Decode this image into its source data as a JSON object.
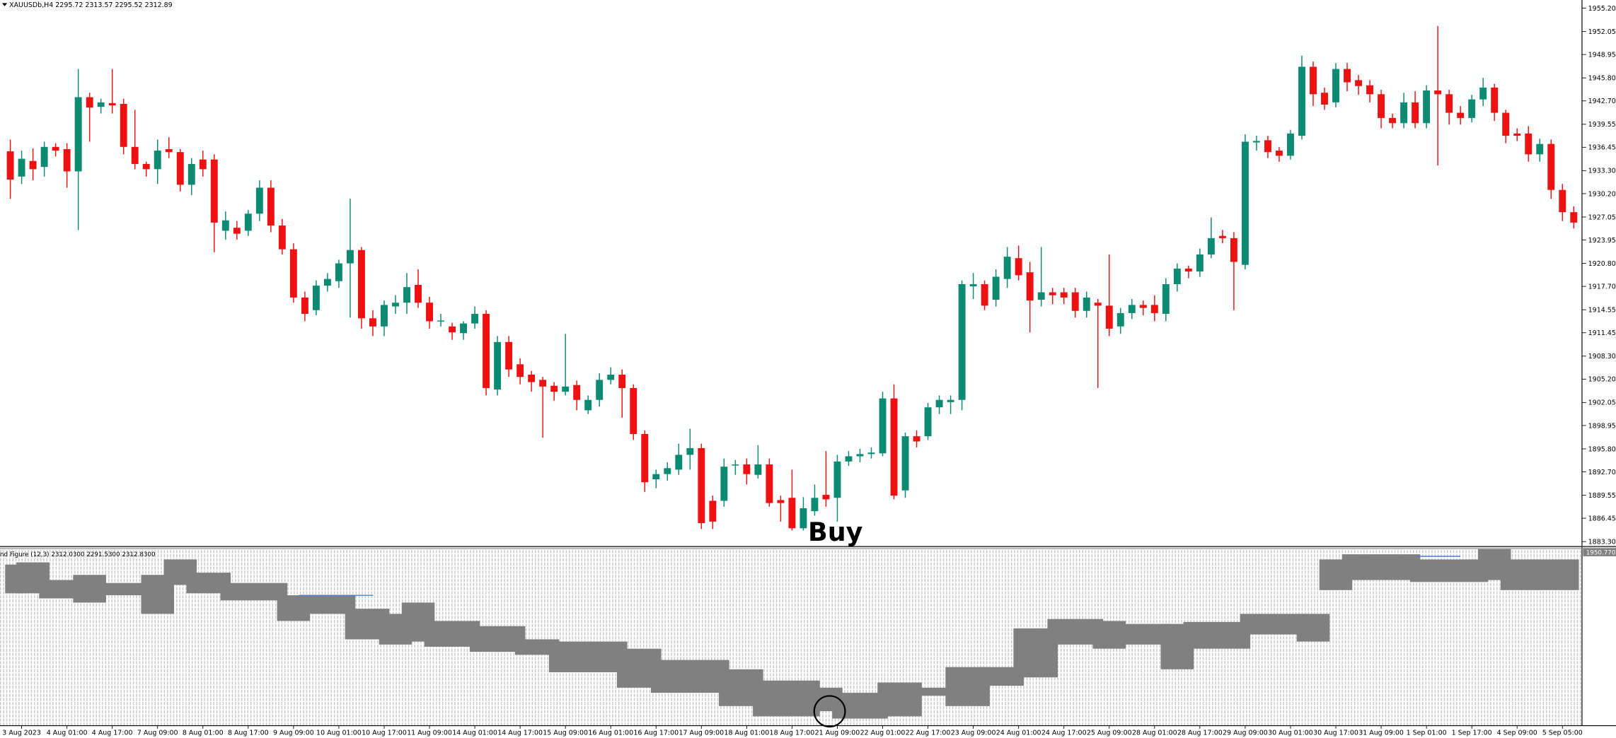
{
  "chart_data": [
    {
      "type": "candlestick",
      "title": "XAUUSDb,H4  2295.72 2313.57 2295.52 2312.89",
      "annotation": "Buy",
      "up_color": "#0d8a72",
      "down_color": "#ee1111",
      "categories": [
        null,
        "3 Aug 2023",
        null,
        null,
        null,
        "4 Aug 01:00",
        null,
        null,
        null,
        "4 Aug 17:00",
        null,
        null,
        null,
        "7 Aug 09:00",
        null,
        null,
        null,
        "8 Aug 01:00",
        null,
        null,
        null,
        "8 Aug 17:00",
        null,
        null,
        null,
        "9 Aug 09:00",
        null,
        null,
        null,
        "10 Aug 01:00",
        null,
        null,
        null,
        "10 Aug 17:00",
        null,
        null,
        null,
        "11 Aug 09:00",
        null,
        null,
        null,
        "14 Aug 01:00",
        null,
        null,
        null,
        "14 Aug 17:00",
        null,
        null,
        null,
        "15 Aug 09:00",
        null,
        null,
        null,
        "16 Aug 01:00",
        null,
        null,
        null,
        "16 Aug 17:00",
        null,
        null,
        null,
        "17 Aug 09:00",
        null,
        null,
        null,
        "18 Aug 01:00",
        null,
        null,
        null,
        "18 Aug 17:00",
        null,
        null,
        null,
        "21 Aug 09:00",
        null,
        null,
        null,
        "22 Aug 01:00",
        null,
        null,
        null,
        "22 Aug 17:00",
        null,
        null,
        null,
        "23 Aug 09:00",
        null,
        null,
        null,
        "24 Aug 01:00",
        null,
        null,
        null,
        "24 Aug 17:00",
        null,
        null,
        null,
        "25 Aug 09:00",
        null,
        null,
        null,
        "28 Aug 01:00",
        null,
        null,
        null,
        "28 Aug 17:00",
        null,
        null,
        null,
        "29 Aug 09:00",
        null,
        null,
        null,
        "30 Aug 01:00",
        null,
        null,
        null,
        "30 Aug 17:00",
        null,
        null,
        null,
        "31 Aug 09:00",
        null,
        null,
        null,
        "1 Sep 01:00",
        null,
        null,
        null,
        "1 Sep 17:00",
        null,
        null,
        null,
        "4 Sep 09:00",
        null,
        null,
        null,
        "5 Sep 05:00",
        null
      ],
      "open": [
        1935.9,
        1932.5,
        1934.6,
        1933.8,
        1936.5,
        1936.2,
        1933.2,
        1943.2,
        1941.9,
        1942.4,
        1942.3,
        1936.5,
        1934.2,
        1933.5,
        1936.2,
        1935.8,
        1931.4,
        1934.8,
        1934.8,
        1925.2,
        1925.6,
        1925.2,
        1927.5,
        1931.0,
        1925.9,
        1922.7,
        1916.2,
        1914.5,
        1917.8,
        1918.4,
        1920.8,
        1922.6,
        1913.4,
        1912.3,
        1915.0,
        1915.5,
        1917.9,
        1915.5,
        1913.0,
        1912.3,
        1911.4,
        1912.7,
        1914.0,
        1903.8,
        1910.2,
        1907.2,
        1905.8,
        1905.1,
        1904.3,
        1903.5,
        1904.4,
        1901.0,
        1902.4,
        1905.1,
        1905.8,
        1904.0,
        1897.8,
        1891.7,
        1892.4,
        1893.0,
        1895.0,
        1895.9,
        1888.8,
        1888.8,
        1893.6,
        1893.7,
        1892.3,
        1893.7,
        1888.9,
        1889.2,
        1885.1,
        1887.4,
        1889.6,
        1889.2,
        1894.1,
        1894.8,
        1895.1,
        1895.2,
        1902.6,
        1890.2,
        1897.5,
        1897.5,
        1901.4,
        1902.1,
        1902.4,
        1917.7,
        1918.0,
        1915.9,
        1918.7,
        1921.5,
        1919.6,
        1915.9,
        1916.9,
        1916.9,
        1916.9,
        1914.4,
        1915.5,
        1915.1,
        1912.3,
        1914.1,
        1915.2,
        1915.2,
        1914.0,
        1918.0,
        1920.1,
        1919.7,
        1922.0,
        1924.5,
        1924.2,
        1920.6,
        1937.1,
        1937.4,
        1936.0,
        1935.3,
        1938.0,
        1947.3,
        1943.8,
        1942.5,
        1947.0,
        1945.5,
        1944.8,
        1943.6,
        1940.4,
        1939.7,
        1942.5,
        1939.7,
        1944.1,
        1943.6,
        1941.1,
        1940.4,
        1942.9,
        1944.5,
        1941.1,
        1938.3,
        1938.3,
        1935.5,
        1936.9,
        1930.7,
        1927.7
      ],
      "high": [
        1937.5,
        1936.0,
        1936.3,
        1937.2,
        1937.0,
        1937.0,
        1947.0,
        1943.8,
        1943.0,
        1947.0,
        1943.0,
        1941.5,
        1934.5,
        1937.5,
        1937.8,
        1936.2,
        1935.0,
        1936.0,
        1935.5,
        1927.8,
        1926.5,
        1928.0,
        1932.0,
        1932.0,
        1926.8,
        1923.5,
        1917.0,
        1918.5,
        1919.5,
        1921.3,
        1929.5,
        1923.0,
        1914.5,
        1915.8,
        1916.5,
        1919.5,
        1920.0,
        1916.3,
        1914.0,
        1912.8,
        1913.0,
        1915.0,
        1914.5,
        1911.0,
        1911.0,
        1908.0,
        1906.3,
        1905.5,
        1904.8,
        1911.3,
        1905.0,
        1903.0,
        1906.0,
        1906.8,
        1906.5,
        1904.5,
        1898.3,
        1893.0,
        1894.0,
        1896.5,
        1898.5,
        1896.5,
        1889.5,
        1894.5,
        1894.3,
        1894.5,
        1896.3,
        1894.5,
        1889.5,
        1893.0,
        1889.3,
        1891.0,
        1895.5,
        1895.0,
        1895.5,
        1895.8,
        1896.0,
        1903.5,
        1904.5,
        1898.0,
        1898.3,
        1902.0,
        1903.0,
        1903.0,
        1918.5,
        1919.5,
        1918.5,
        1920.0,
        1923.0,
        1923.2,
        1921.0,
        1923.0,
        1917.5,
        1917.5,
        1917.5,
        1917.0,
        1916.0,
        1922.0,
        1914.8,
        1916.0,
        1915.8,
        1916.5,
        1918.8,
        1920.8,
        1920.5,
        1922.8,
        1927.0,
        1925.3,
        1925.0,
        1938.2,
        1938.0,
        1938.0,
        1936.5,
        1938.8,
        1948.8,
        1948.0,
        1944.5,
        1947.8,
        1947.8,
        1946.2,
        1945.5,
        1944.2,
        1941.0,
        1943.8,
        1944.0,
        1944.8,
        1952.8,
        1944.2,
        1942.0,
        1943.5,
        1945.8,
        1945.0,
        1941.5,
        1939.0,
        1939.3,
        1937.6,
        1937.5,
        1931.5,
        1928.5
      ],
      "low": [
        1929.5,
        1931.5,
        1932.0,
        1932.5,
        1935.2,
        1931.0,
        1925.3,
        1937.2,
        1941.0,
        1941.0,
        1935.5,
        1933.5,
        1932.5,
        1931.5,
        1935.0,
        1930.5,
        1930.0,
        1932.5,
        1922.3,
        1924.0,
        1924.0,
        1924.5,
        1926.5,
        1925.0,
        1922.0,
        1915.5,
        1913.0,
        1913.8,
        1917.0,
        1917.5,
        1913.5,
        1912.0,
        1911.0,
        1911.0,
        1914.0,
        1914.0,
        1914.8,
        1912.0,
        1912.3,
        1910.5,
        1910.5,
        1912.0,
        1903.0,
        1903.0,
        1905.5,
        1904.5,
        1903.5,
        1897.3,
        1902.3,
        1903.0,
        1901.0,
        1900.5,
        1901.5,
        1904.5,
        1900.0,
        1897.0,
        1890.0,
        1890.5,
        1891.5,
        1892.3,
        1893.0,
        1885.0,
        1885.0,
        1888.0,
        1892.3,
        1891.0,
        1891.8,
        1888.0,
        1886.0,
        1884.8,
        1884.8,
        1886.8,
        1888.0,
        1886.0,
        1893.5,
        1894.0,
        1894.5,
        1894.8,
        1889.0,
        1889.2,
        1896.0,
        1897.0,
        1900.5,
        1900.5,
        1901.0,
        1916.0,
        1914.5,
        1915.0,
        1917.5,
        1918.5,
        1911.5,
        1915.0,
        1915.3,
        1915.3,
        1913.5,
        1913.5,
        1904.0,
        1911.0,
        1911.3,
        1913.3,
        1913.8,
        1913.0,
        1913.0,
        1917.0,
        1918.8,
        1919.0,
        1921.5,
        1923.5,
        1914.5,
        1920.0,
        1936.0,
        1935.0,
        1934.5,
        1934.8,
        1937.5,
        1942.0,
        1941.5,
        1941.8,
        1944.0,
        1943.5,
        1942.5,
        1939.0,
        1939.0,
        1939.0,
        1939.0,
        1939.0,
        1934.0,
        1939.5,
        1939.5,
        1939.8,
        1942.0,
        1940.0,
        1937.0,
        1937.3,
        1934.5,
        1934.5,
        1929.5,
        1926.5,
        1925.5
      ],
      "close": [
        1932.1,
        1934.9,
        1933.5,
        1936.5,
        1936.0,
        1933.2,
        1943.2,
        1941.8,
        1942.5,
        1942.1,
        1936.5,
        1934.2,
        1933.5,
        1936.0,
        1935.8,
        1931.4,
        1934.2,
        1933.5,
        1926.3,
        1926.6,
        1924.8,
        1927.5,
        1931.0,
        1925.9,
        1922.7,
        1916.2,
        1914.0,
        1917.8,
        1918.7,
        1920.8,
        1922.6,
        1913.4,
        1912.3,
        1915.2,
        1915.5,
        1917.6,
        1915.5,
        1913.0,
        1913.1,
        1911.5,
        1912.7,
        1914.0,
        1904.0,
        1910.2,
        1906.5,
        1905.5,
        1904.8,
        1904.2,
        1903.5,
        1904.2,
        1902.4,
        1902.4,
        1905.1,
        1905.8,
        1904.0,
        1897.8,
        1891.3,
        1892.4,
        1893.2,
        1895.0,
        1895.9,
        1885.8,
        1886.0,
        1893.4,
        1893.7,
        1892.4,
        1893.7,
        1888.5,
        1888.5,
        1885.1,
        1887.8,
        1889.2,
        1889.0,
        1894.1,
        1894.8,
        1895.1,
        1895.3,
        1902.6,
        1889.5,
        1897.5,
        1896.8,
        1901.4,
        1902.4,
        1902.4,
        1918.0,
        1918.0,
        1915.1,
        1919.0,
        1921.7,
        1919.2,
        1915.8,
        1916.9,
        1916.5,
        1916.2,
        1914.4,
        1916.2,
        1915.1,
        1912.0,
        1914.1,
        1915.2,
        1914.8,
        1914.1,
        1918.0,
        1920.1,
        1919.7,
        1922.0,
        1924.2,
        1924.2,
        1921.0,
        1937.2,
        1937.3,
        1935.8,
        1935.3,
        1938.3,
        1947.3,
        1943.6,
        1942.2,
        1947.0,
        1945.2,
        1944.7,
        1943.6,
        1940.4,
        1939.7,
        1942.5,
        1939.7,
        1944.1,
        1943.6,
        1941.1,
        1940.4,
        1942.9,
        1944.5,
        1941.1,
        1938.0,
        1938.0,
        1935.5,
        1936.9,
        1930.7,
        1927.7,
        1926.3
      ],
      "ylim": [
        1882.7,
        1956.3
      ],
      "yticks": [
        {
          "value": 1955.2,
          "label": "1955.20"
        },
        {
          "value": 1952.05,
          "label": "1952.05"
        },
        {
          "value": 1948.95,
          "label": "1948.95"
        },
        {
          "value": 1945.8,
          "label": "1945.80"
        },
        {
          "value": 1942.7,
          "label": "1942.70"
        },
        {
          "value": 1939.55,
          "label": "1939.55"
        },
        {
          "value": 1936.45,
          "label": "1936.45"
        },
        {
          "value": 1933.3,
          "label": "1933.30"
        },
        {
          "value": 1930.2,
          "label": "1930.20"
        },
        {
          "value": 1927.05,
          "label": "1927.05"
        },
        {
          "value": 1923.95,
          "label": "1923.95"
        },
        {
          "value": 1920.8,
          "label": "1920.80"
        },
        {
          "value": 1917.7,
          "label": "1917.70"
        },
        {
          "value": 1914.55,
          "label": "1914.55"
        },
        {
          "value": 1911.45,
          "label": "1911.45"
        },
        {
          "value": 1908.3,
          "label": "1908.30"
        },
        {
          "value": 1905.2,
          "label": "1905.20"
        },
        {
          "value": 1902.05,
          "label": "1902.05"
        },
        {
          "value": 1898.95,
          "label": "1898.95"
        },
        {
          "value": 1895.8,
          "label": "1895.80"
        },
        {
          "value": 1892.7,
          "label": "1892.70"
        },
        {
          "value": 1889.55,
          "label": "1889.55"
        },
        {
          "value": 1886.45,
          "label": "1886.45"
        },
        {
          "value": 1883.3,
          "label": "1883.30"
        }
      ]
    },
    {
      "type": "band",
      "title": "nd Figure (12,3) 2312.0300 2291.5300 2312.8300",
      "color": "#808080",
      "segments": [
        {
          "from": 0,
          "to": 1,
          "high": 1945.7,
          "low": 1934.0
        },
        {
          "from": 1,
          "to": 3,
          "high": 1946.6,
          "low": 1934.0
        },
        {
          "from": 3,
          "to": 6,
          "high": 1939.4,
          "low": 1931.9
        },
        {
          "from": 6,
          "to": 8,
          "high": 1941.5,
          "low": 1930.2
        },
        {
          "from": 8,
          "to": 12,
          "high": 1938.2,
          "low": 1933.2
        },
        {
          "from": 12,
          "to": 14,
          "high": 1941.5,
          "low": 1925.6
        },
        {
          "from": 14,
          "to": 16,
          "high": 1947.8,
          "low": 1937.4
        },
        {
          "from": 16,
          "to": 19,
          "high": 1942.4,
          "low": 1934.0
        },
        {
          "from": 19,
          "to": 24,
          "high": 1938.2,
          "low": 1931.1
        },
        {
          "from": 24,
          "to": 26,
          "high": 1933.2,
          "low": 1922.7
        },
        {
          "from": 26,
          "to": 30,
          "high": 1933.2,
          "low": 1925.6
        },
        {
          "from": 30,
          "to": 33,
          "high": 1927.7,
          "low": 1915.2
        },
        {
          "from": 33,
          "to": 35,
          "high": 1925.6,
          "low": 1913.1
        },
        {
          "from": 35,
          "to": 37,
          "high": 1930.2,
          "low": 1914.3
        },
        {
          "from": 37,
          "to": 41,
          "high": 1922.7,
          "low": 1912.2
        },
        {
          "from": 41,
          "to": 45,
          "high": 1920.6,
          "low": 1910.1
        },
        {
          "from": 45,
          "to": 48,
          "high": 1915.2,
          "low": 1908.9
        },
        {
          "from": 48,
          "to": 54,
          "high": 1914.3,
          "low": 1901.8
        },
        {
          "from": 54,
          "to": 57,
          "high": 1911.4,
          "low": 1895.5
        },
        {
          "from": 57,
          "to": 63,
          "high": 1906.8,
          "low": 1893.4
        },
        {
          "from": 63,
          "to": 66,
          "high": 1903.0,
          "low": 1888.0
        },
        {
          "from": 66,
          "to": 71,
          "high": 1898.4,
          "low": 1883.8
        },
        {
          "from": 71,
          "to": 73,
          "high": 1895.5,
          "low": 1885.9
        },
        {
          "from": 73,
          "to": 77,
          "high": 1893.4,
          "low": 1882.9
        },
        {
          "from": 77,
          "to": 80,
          "high": 1897.6,
          "low": 1883.8
        },
        {
          "from": 80,
          "to": 83,
          "high": 1895.5,
          "low": 1892.2
        },
        {
          "from": 83,
          "to": 86,
          "high": 1903.9,
          "low": 1888.0
        },
        {
          "from": 86,
          "to": 89,
          "high": 1903.9,
          "low": 1896.3
        },
        {
          "from": 89,
          "to": 92,
          "high": 1919.7,
          "low": 1899.7
        },
        {
          "from": 92,
          "to": 96,
          "high": 1923.5,
          "low": 1913.1
        },
        {
          "from": 96,
          "to": 98,
          "high": 1922.7,
          "low": 1911.4
        },
        {
          "from": 98,
          "to": 102,
          "high": 1921.5,
          "low": 1913.1
        },
        {
          "from": 102,
          "to": 104,
          "high": 1921.5,
          "low": 1903.0
        },
        {
          "from": 104,
          "to": 109,
          "high": 1922.3,
          "low": 1911.4
        },
        {
          "from": 109,
          "to": 114,
          "high": 1925.6,
          "low": 1917.2
        },
        {
          "from": 114,
          "to": 116,
          "high": 1925.6,
          "low": 1914.3
        },
        {
          "from": 116,
          "to": 118,
          "high": 1947.8,
          "low": 1935.3
        },
        {
          "from": 118,
          "to": 124,
          "high": 1949.9,
          "low": 1939.4
        },
        {
          "from": 124,
          "to": 130,
          "high": 1947.8,
          "low": 1938.6
        },
        {
          "from": 130,
          "to": 132,
          "high": 1952.0,
          "low": 1939.4
        },
        {
          "from": 132,
          "to": 138,
          "high": 1947.8,
          "low": 1935.3
        }
      ],
      "ylim": [
        1880,
        1952
      ],
      "yticks": [
        {
          "value": 1950.77,
          "label": "1950.7700"
        }
      ]
    }
  ]
}
